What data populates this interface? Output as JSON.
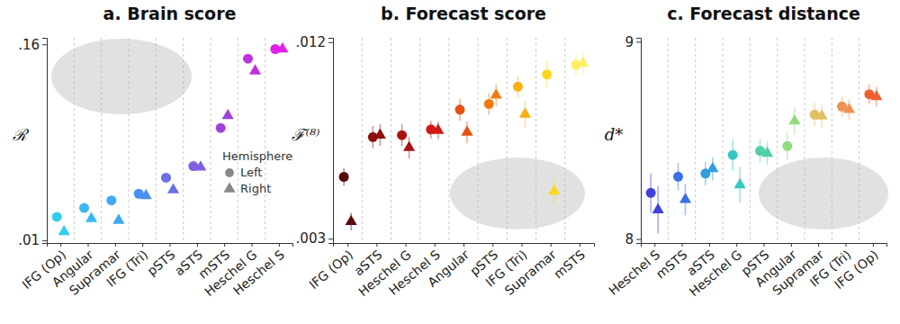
{
  "chart_data": [
    {
      "type": "scatter",
      "title": "a. Brain score",
      "y_label": "ℛ",
      "categories": [
        "IFG (Op)",
        "Angular",
        "Supramar",
        "IFG (Tri)",
        "pSTS",
        "aSTS",
        "mSTS",
        "Heschel G",
        "Heschel S"
      ],
      "colors": [
        "#33ccf0",
        "#3bb8f5",
        "#40a8f5",
        "#4a90f0",
        "#6a70e6",
        "#8060e0",
        "#a040dd",
        "#c030e0",
        "#e020e8"
      ],
      "series": [
        {
          "name": "Left",
          "marker": "circle",
          "values": [
            0.028,
            0.0348,
            0.0406,
            0.0457,
            0.058,
            0.0668,
            0.096,
            0.149,
            0.1564
          ]
        },
        {
          "name": "Right",
          "marker": "triangle",
          "values": [
            0.0166,
            0.0267,
            0.0253,
            0.0442,
            0.0486,
            0.066,
            0.1054,
            0.1396,
            0.1564
          ]
        }
      ],
      "ylim": [
        0.008,
        0.165
      ],
      "yticks": [
        {
          "value": 0.01,
          "label": ".01"
        },
        {
          "value": 0.16,
          "label": ".16"
        }
      ],
      "legend": "center right",
      "legend_title": "Hemisphere"
    },
    {
      "type": "scatter",
      "title": "b. Forecast score",
      "y_label": "ℱ⁽⁸⁾",
      "categories": [
        "IFG (Op)",
        "aSTS",
        "Heschel G",
        "Heschel S",
        "Angular",
        "pSTS",
        "IFG (Tri)",
        "Supramar",
        "mSTS"
      ],
      "colors": [
        "#5a0a0a",
        "#8b1010",
        "#a81212",
        "#d01818",
        "#e85010",
        "#f07a10",
        "#f8b010",
        "#fbd820",
        "#fdf060"
      ],
      "series": [
        {
          "name": "Left",
          "marker": "circle",
          "values": [
            0.00583,
            0.00765,
            0.00774,
            0.008,
            0.00891,
            0.00917,
            0.00996,
            0.01052,
            0.01096
          ],
          "errors": [
            0.0004,
            0.0005,
            0.0005,
            0.0004,
            0.0005,
            0.0005,
            0.0005,
            0.0006,
            0.0005
          ]
        },
        {
          "name": "Right",
          "marker": "triangle",
          "values": [
            0.00378,
            0.00774,
            0.00717,
            0.00796,
            0.00787,
            0.00957,
            0.0087,
            0.00517,
            0.01104
          ],
          "errors": [
            0.0004,
            0.0005,
            0.0005,
            0.0004,
            0.0005,
            0.0005,
            0.0006,
            0.0006,
            0.0005
          ]
        }
      ],
      "ylim": [
        0.0028,
        0.0122
      ],
      "yticks": [
        {
          "value": 0.003,
          "label": ".003"
        },
        {
          "value": 0.012,
          "label": ".012"
        }
      ]
    },
    {
      "type": "scatter",
      "title": "c. Forecast distance",
      "y_label": "d*",
      "categories": [
        "Heschel S",
        "mSTS",
        "aSTS",
        "Heschel G",
        "pSTS",
        "Angular",
        "Supramar",
        "IFG (Tri)",
        "IFG (Op)"
      ],
      "colors": [
        "#4040e0",
        "#3a70e8",
        "#30a0e0",
        "#30c8c0",
        "#50d0a0",
        "#90dc80",
        "#e0c060",
        "#f09050",
        "#f06030"
      ],
      "series": [
        {
          "name": "Left",
          "marker": "circle",
          "values": [
            8.234,
            8.316,
            8.332,
            8.426,
            8.447,
            8.471,
            8.631,
            8.672,
            8.734
          ],
          "errors": [
            0.1,
            0.07,
            0.06,
            0.08,
            0.06,
            0.07,
            0.06,
            0.05,
            0.05
          ]
        },
        {
          "name": "Right",
          "marker": "triangle",
          "values": [
            8.148,
            8.2,
            8.357,
            8.275,
            8.434,
            8.598,
            8.623,
            8.656,
            8.721
          ],
          "errors": [
            0.12,
            0.08,
            0.06,
            0.09,
            0.06,
            0.07,
            0.06,
            0.05,
            0.05
          ]
        }
      ],
      "ylim": [
        7.98,
        9.02
      ],
      "yticks": [
        8,
        9
      ]
    }
  ]
}
